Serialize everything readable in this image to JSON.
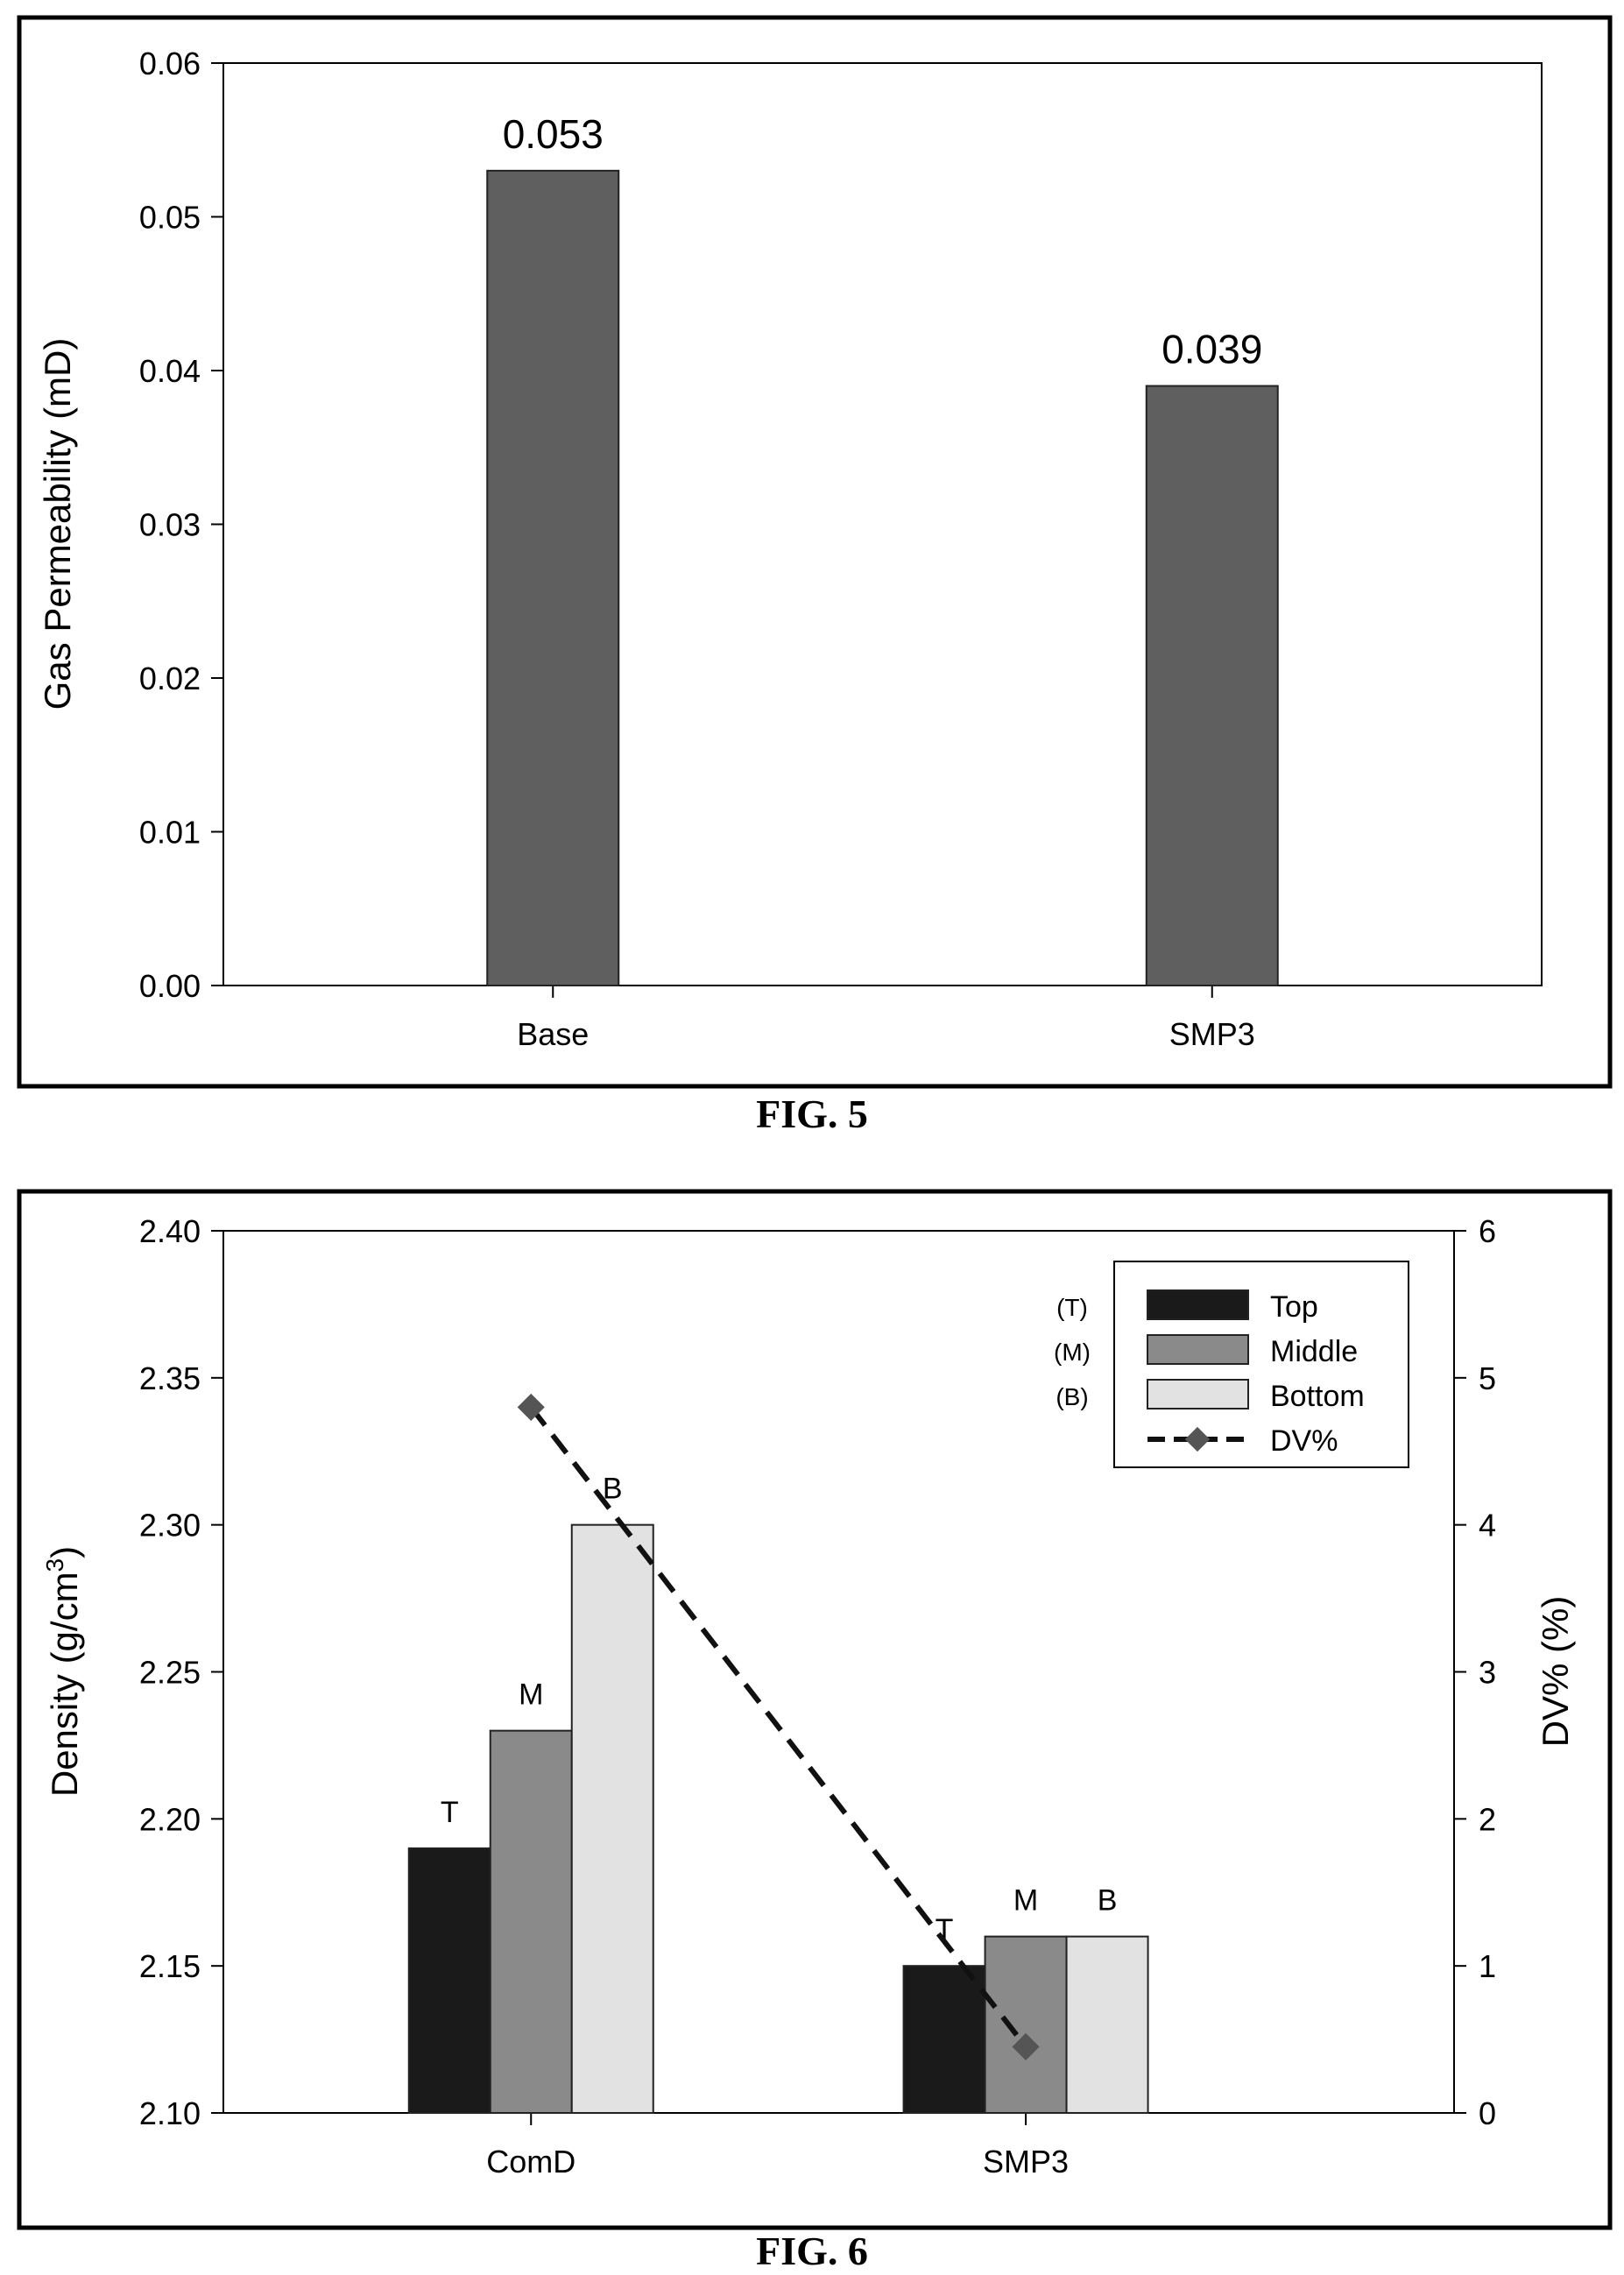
{
  "chart_data": [
    {
      "type": "bar",
      "categories": [
        "Base",
        "SMP3"
      ],
      "values": [
        0.053,
        0.039
      ],
      "data_labels": [
        "0.053",
        "0.039"
      ],
      "title": "",
      "xlabel": "",
      "ylabel": "Gas Permeability (mD)",
      "ylim": [
        0,
        0.06
      ],
      "yticks": [
        "0.00",
        "0.01",
        "0.02",
        "0.03",
        "0.04",
        "0.05",
        "0.06"
      ],
      "caption": "FIG. 5",
      "bar_color": "#5f5f5f",
      "grid": false
    },
    {
      "type": "bar",
      "categories": [
        "ComD",
        "SMP3"
      ],
      "series": [
        {
          "name": "Top",
          "key": "(T)",
          "label": "T",
          "values": [
            2.19,
            2.15
          ],
          "color": "#1a1a1a"
        },
        {
          "name": "Middle",
          "key": "(M)",
          "label": "M",
          "values": [
            2.23,
            2.16
          ],
          "color": "#8a8a8a"
        },
        {
          "name": "Bottom",
          "key": "(B)",
          "label": "B",
          "values": [
            2.3,
            2.16
          ],
          "color": "#e2e2e2"
        }
      ],
      "line_series": {
        "name": "DV%",
        "values": [
          4.8,
          0.45
        ],
        "axis": "right",
        "color": "#555555"
      },
      "title": "",
      "xlabel": "",
      "ylabel": "Density (g/cm",
      "ylabel_sup": "3",
      "ylabel_end": ")",
      "y2label": "DV% (%)",
      "ylim": [
        2.1,
        2.4
      ],
      "y2lim": [
        0,
        6
      ],
      "yticks": [
        "2.10",
        "2.15",
        "2.20",
        "2.25",
        "2.30",
        "2.35",
        "2.40"
      ],
      "y2ticks": [
        "0",
        "1",
        "2",
        "3",
        "4",
        "5",
        "6"
      ],
      "legend": "top-right",
      "caption": "FIG. 6",
      "grid": false
    }
  ]
}
